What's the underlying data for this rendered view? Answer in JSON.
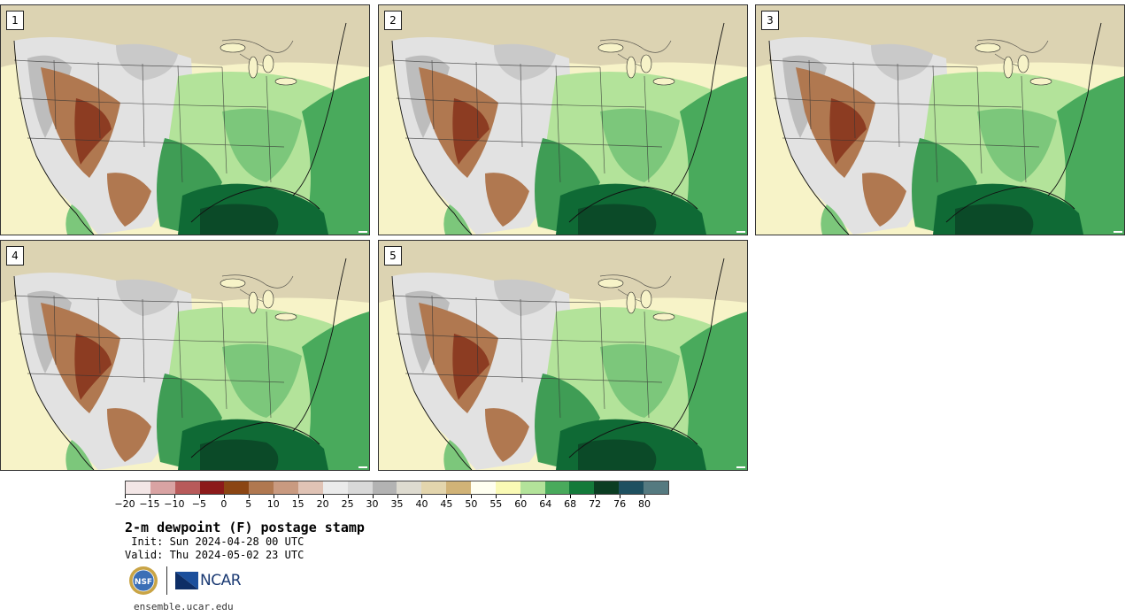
{
  "panels": [
    {
      "label": "1"
    },
    {
      "label": "2"
    },
    {
      "label": "3"
    },
    {
      "label": "4"
    },
    {
      "label": "5"
    }
  ],
  "colorbar": {
    "colors": [
      "#f3e6e6",
      "#d9a3a3",
      "#b85a5a",
      "#8c1a1a",
      "#8b4513",
      "#b07850",
      "#c99a80",
      "#e0c3b5",
      "#ebebeb",
      "#d9d9d9",
      "#b3b3b3",
      "#dedbd0",
      "#e3d5ad",
      "#d1b377",
      "#fffff0",
      "#fafab5",
      "#b3e39a",
      "#49aa5c",
      "#137a3a",
      "#0b3d22",
      "#1e5060",
      "#557a80"
    ],
    "ticks": [
      "−20",
      "−15",
      "−10",
      "−5",
      "0",
      "5",
      "10",
      "15",
      "20",
      "25",
      "30",
      "35",
      "40",
      "45",
      "50",
      "55",
      "60",
      "64",
      "68",
      "72",
      "76",
      "80"
    ]
  },
  "title": "2-m dewpoint (F) postage stamp",
  "init": " Init: Sun 2024-04-28 00 UTC",
  "valid": "Valid: Thu 2024-05-02 23 UTC",
  "logos": {
    "nsf": "NSF",
    "ncar": "NCAR"
  },
  "footer": "ensemble.ucar.edu"
}
